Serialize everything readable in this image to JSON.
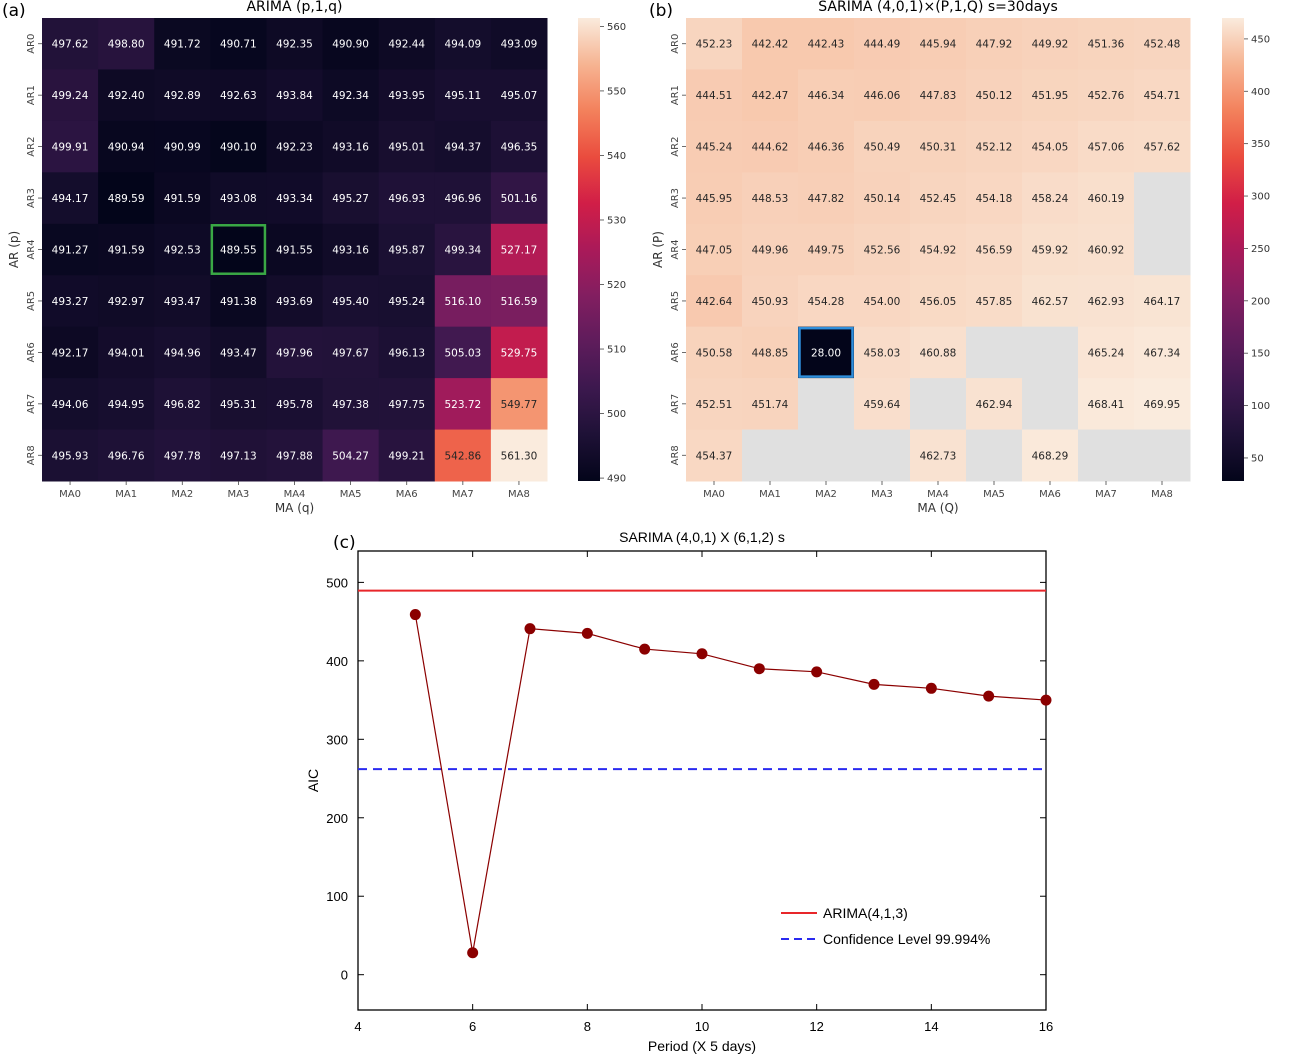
{
  "chart_data": [
    {
      "type": "heatmap",
      "panel_label": "(a)",
      "title": "ARIMA (p,1,q)",
      "xlabel": "MA (q)",
      "ylabel": "AR (p)",
      "x_categories": [
        "MA0",
        "MA1",
        "MA2",
        "MA3",
        "MA4",
        "MA5",
        "MA6",
        "MA7",
        "MA8"
      ],
      "y_categories": [
        "AR0",
        "AR1",
        "AR2",
        "AR3",
        "AR4",
        "AR5",
        "AR6",
        "AR7",
        "AR8"
      ],
      "values": [
        [
          497.62,
          498.8,
          491.72,
          490.71,
          492.35,
          490.9,
          492.44,
          494.09,
          493.09
        ],
        [
          499.24,
          492.4,
          492.89,
          492.63,
          493.84,
          492.34,
          493.95,
          495.11,
          495.07
        ],
        [
          499.91,
          490.94,
          490.99,
          490.1,
          492.23,
          493.16,
          495.01,
          494.37,
          496.35
        ],
        [
          494.17,
          489.59,
          491.59,
          493.08,
          493.34,
          495.27,
          496.93,
          496.96,
          501.16
        ],
        [
          491.27,
          491.59,
          492.53,
          489.55,
          491.55,
          493.16,
          495.87,
          499.34,
          527.17
        ],
        [
          493.27,
          492.97,
          493.47,
          491.38,
          493.69,
          495.4,
          495.24,
          516.1,
          516.59
        ],
        [
          492.17,
          494.01,
          494.96,
          493.47,
          497.96,
          497.67,
          496.13,
          505.03,
          529.75
        ],
        [
          494.06,
          494.95,
          496.82,
          495.31,
          495.78,
          497.38,
          497.75,
          523.72,
          549.77
        ],
        [
          495.93,
          496.76,
          497.78,
          497.13,
          497.88,
          504.27,
          499.21,
          542.86,
          561.3
        ]
      ],
      "colormap": "rocket",
      "value_range": [
        489.55,
        561.3
      ],
      "colorbar_ticks": [
        490,
        500,
        510,
        520,
        530,
        540,
        550,
        560
      ],
      "highlight": {
        "row": 4,
        "col": 3,
        "color": "#3aa845"
      }
    },
    {
      "type": "heatmap",
      "panel_label": "(b)",
      "title": "SARIMA (4,0,1)×(P,1,Q) s=30days",
      "xlabel": "MA (Q)",
      "ylabel": "AR (P)",
      "x_categories": [
        "MA0",
        "MA1",
        "MA2",
        "MA3",
        "MA4",
        "MA5",
        "MA6",
        "MA7",
        "MA8"
      ],
      "y_categories": [
        "AR0",
        "AR1",
        "AR2",
        "AR3",
        "AR4",
        "AR5",
        "AR6",
        "AR7",
        "AR8"
      ],
      "values": [
        [
          452.23,
          442.42,
          442.43,
          444.49,
          445.94,
          447.92,
          449.92,
          451.36,
          452.48
        ],
        [
          444.51,
          442.47,
          446.34,
          446.06,
          447.83,
          450.12,
          451.95,
          452.76,
          454.71
        ],
        [
          445.24,
          444.62,
          446.36,
          450.49,
          450.31,
          452.12,
          454.05,
          457.06,
          457.62
        ],
        [
          445.95,
          448.53,
          447.82,
          450.14,
          452.45,
          454.18,
          458.24,
          460.19,
          null
        ],
        [
          447.05,
          449.96,
          449.75,
          452.56,
          454.92,
          456.59,
          459.92,
          460.92,
          null
        ],
        [
          442.64,
          450.93,
          454.28,
          454.0,
          456.05,
          457.85,
          462.57,
          462.93,
          464.17
        ],
        [
          450.58,
          448.85,
          28.0,
          458.03,
          460.88,
          null,
          null,
          465.24,
          467.34
        ],
        [
          452.51,
          451.74,
          null,
          459.64,
          null,
          462.94,
          null,
          468.41,
          469.95
        ],
        [
          454.37,
          null,
          null,
          null,
          462.73,
          null,
          468.29,
          null,
          null
        ]
      ],
      "missing_color": "#e0e0e0",
      "colormap": "rocket",
      "value_range": [
        28.0,
        469.95
      ],
      "colorbar_ticks": [
        50,
        100,
        150,
        200,
        250,
        300,
        350,
        400,
        450
      ],
      "highlight": {
        "row": 6,
        "col": 2,
        "color": "#2f8fdc"
      }
    },
    {
      "type": "line",
      "panel_label": "(c)",
      "title": "SARIMA (4,0,1) X (6,1,2) s",
      "xlabel": "Period (X 5 days)",
      "ylabel": "AIC",
      "xlim": [
        4,
        16
      ],
      "ylim": [
        -45,
        540
      ],
      "x_ticks": [
        4,
        6,
        8,
        10,
        12,
        14,
        16
      ],
      "y_ticks": [
        0,
        100,
        200,
        300,
        400,
        500
      ],
      "series": [
        {
          "x": [
            5,
            6,
            7,
            8,
            9,
            10,
            11,
            12,
            13,
            14,
            15,
            16
          ],
          "values": [
            459,
            28,
            441,
            435,
            415,
            409,
            390,
            386,
            370,
            365,
            355,
            350
          ],
          "color": "#8b0000"
        }
      ],
      "reference_lines": [
        {
          "name": "ARIMA(4,1,3)",
          "y": 489.55,
          "color": "#e8262a",
          "style": "solid"
        },
        {
          "name": "Confidence Level 99.994%",
          "y": 262,
          "color": "#2a2af0",
          "style": "dashed"
        }
      ],
      "legend_position": "bottom-right"
    }
  ]
}
